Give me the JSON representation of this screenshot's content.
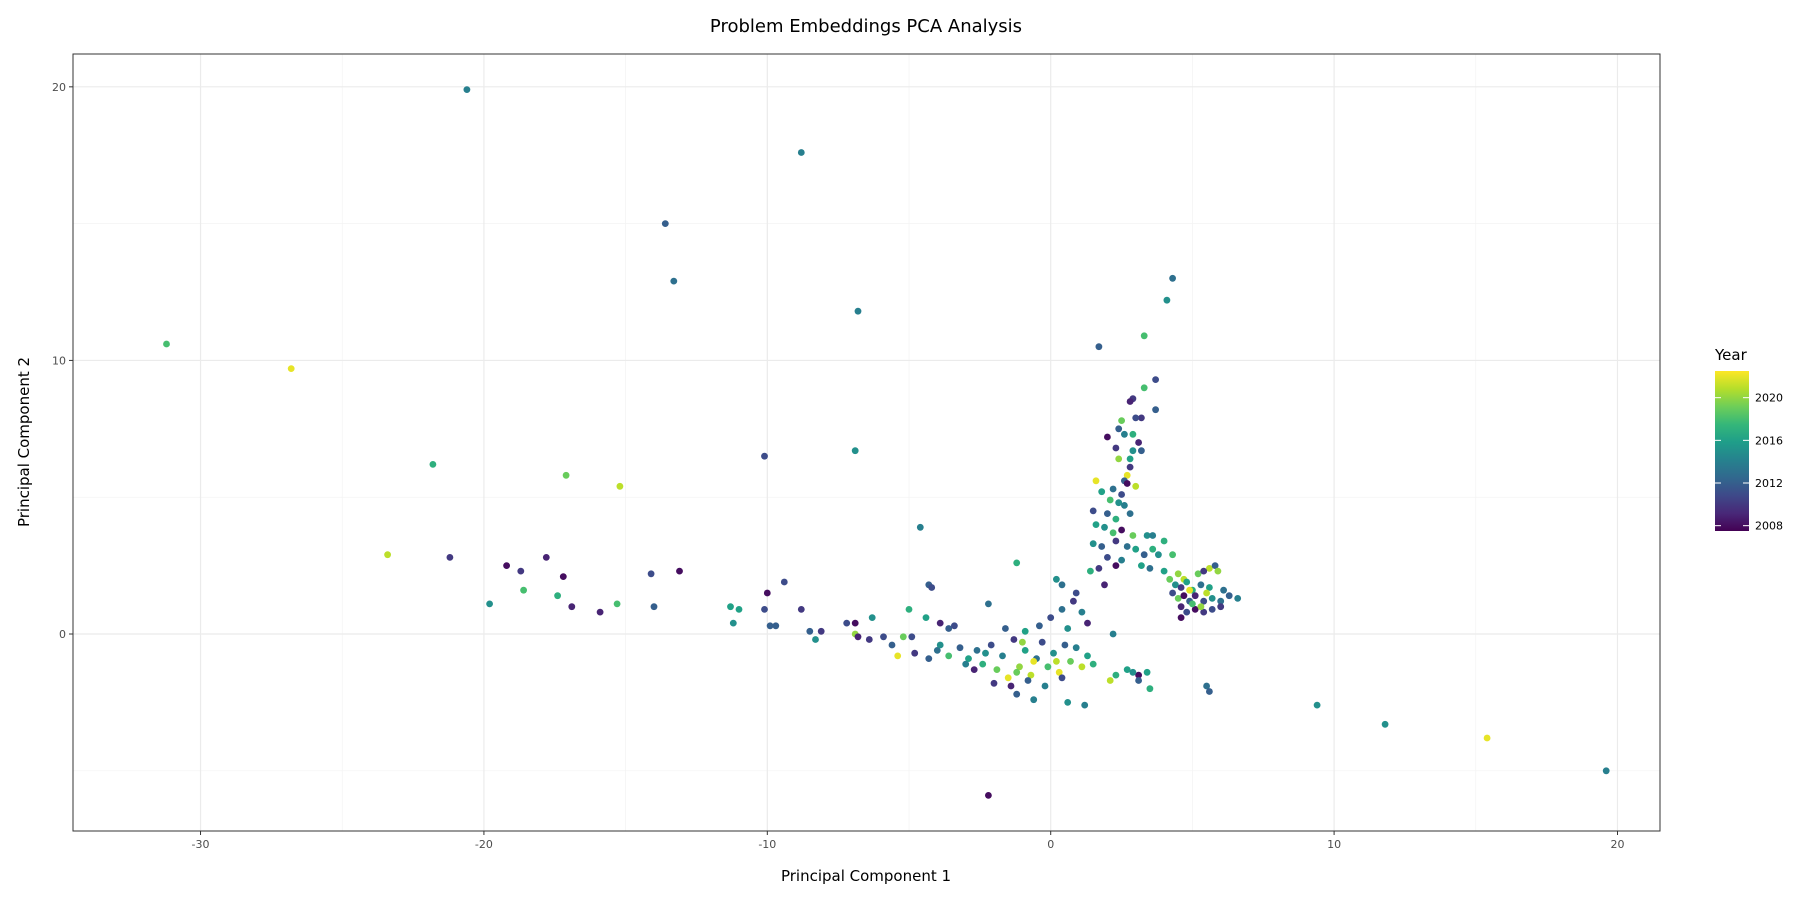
{
  "chart_data": {
    "type": "scatter",
    "title": "Problem Embeddings PCA Analysis",
    "xlabel": "Principal Component 1",
    "ylabel": "Principal Component 2",
    "xlim": [
      -34.5,
      21.5
    ],
    "ylim": [
      -7.2,
      21.2
    ],
    "x_ticks": [
      -30,
      -20,
      -10,
      0,
      10,
      20
    ],
    "x_tick_labels": [
      "-30",
      "-20",
      "-10",
      "0",
      "10",
      "20"
    ],
    "y_ticks": [
      0,
      10,
      20
    ],
    "y_tick_labels": [
      "0",
      "10",
      "20"
    ],
    "grid": true,
    "legend": {
      "title": "Year",
      "placement": "right",
      "color_range": [
        2007.5,
        2022.5
      ],
      "ticks": [
        2020,
        2016,
        2012,
        2008
      ],
      "tick_labels": [
        "2020",
        "2016",
        "2012",
        "2008"
      ]
    },
    "colormap": "viridis",
    "colormap_stops": [
      "#440154",
      "#482878",
      "#3e4989",
      "#31688e",
      "#26828e",
      "#1f9e89",
      "#35b779",
      "#6ece58",
      "#b5de2b",
      "#fde725"
    ],
    "points": [
      [
        -20.6,
        19.9,
        2014
      ],
      [
        -8.8,
        17.6,
        2014
      ],
      [
        -13.6,
        15.0,
        2012
      ],
      [
        -13.3,
        12.9,
        2013
      ],
      [
        -6.8,
        11.8,
        2014
      ],
      [
        -31.2,
        10.6,
        2018
      ],
      [
        -26.8,
        9.7,
        2022
      ],
      [
        -21.8,
        6.2,
        2017
      ],
      [
        -17.1,
        5.8,
        2019
      ],
      [
        -15.2,
        5.4,
        2021
      ],
      [
        -10.1,
        6.5,
        2011
      ],
      [
        -6.9,
        6.7,
        2015
      ],
      [
        -23.4,
        2.9,
        2021
      ],
      [
        -21.2,
        2.8,
        2010
      ],
      [
        -19.2,
        2.5,
        2008
      ],
      [
        -18.7,
        2.3,
        2010
      ],
      [
        -17.8,
        2.8,
        2009
      ],
      [
        -17.2,
        2.1,
        2008
      ],
      [
        -18.6,
        1.6,
        2018
      ],
      [
        -17.4,
        1.4,
        2017
      ],
      [
        -16.9,
        1.0,
        2009
      ],
      [
        -19.8,
        1.1,
        2015
      ],
      [
        -15.3,
        1.1,
        2018
      ],
      [
        -15.9,
        0.8,
        2009
      ],
      [
        -14.1,
        2.2,
        2011
      ],
      [
        -13.1,
        2.3,
        2008
      ],
      [
        -14.0,
        1.0,
        2012
      ],
      [
        -11.3,
        1.0,
        2016
      ],
      [
        -11.0,
        0.9,
        2016
      ],
      [
        -11.2,
        0.4,
        2015
      ],
      [
        -10.0,
        1.5,
        2008
      ],
      [
        -10.1,
        0.9,
        2011
      ],
      [
        -9.9,
        0.3,
        2012
      ],
      [
        -9.7,
        0.3,
        2012
      ],
      [
        -9.4,
        1.9,
        2011
      ],
      [
        -8.8,
        0.9,
        2010
      ],
      [
        -8.5,
        0.1,
        2012
      ],
      [
        -8.1,
        0.1,
        2010
      ],
      [
        -8.3,
        -0.2,
        2015
      ],
      [
        -7.2,
        0.4,
        2011
      ],
      [
        -6.9,
        0.4,
        2008
      ],
      [
        -6.9,
        0.0,
        2020
      ],
      [
        -6.8,
        -0.1,
        2009
      ],
      [
        -6.4,
        -0.2,
        2010
      ],
      [
        -6.3,
        0.6,
        2015
      ],
      [
        -5.9,
        -0.1,
        2011
      ],
      [
        -5.6,
        -0.4,
        2012
      ],
      [
        -5.4,
        -0.8,
        2022
      ],
      [
        -5.2,
        -0.1,
        2019
      ],
      [
        -5.0,
        0.9,
        2017
      ],
      [
        -4.9,
        -0.1,
        2011
      ],
      [
        -4.8,
        -0.7,
        2010
      ],
      [
        -4.6,
        3.9,
        2014
      ],
      [
        -4.4,
        0.6,
        2016
      ],
      [
        -4.3,
        1.8,
        2012
      ],
      [
        -4.2,
        1.7,
        2011
      ],
      [
        -4.0,
        -0.6,
        2013
      ],
      [
        -3.9,
        0.4,
        2009
      ],
      [
        -3.6,
        0.2,
        2012
      ],
      [
        -3.4,
        0.3,
        2011
      ],
      [
        -2.2,
        1.1,
        2013
      ],
      [
        -1.2,
        2.6,
        2017
      ],
      [
        -2.2,
        -5.9,
        2008
      ],
      [
        -1.2,
        -2.2,
        2012
      ],
      [
        -0.6,
        -2.4,
        2014
      ],
      [
        0.6,
        -2.5,
        2015
      ],
      [
        1.2,
        -2.6,
        2014
      ],
      [
        0.9,
        1.5,
        2011
      ],
      [
        0.2,
        2.0,
        2015
      ],
      [
        0.4,
        1.8,
        2013
      ],
      [
        2.2,
        0.0,
        2014
      ],
      [
        4.3,
        13.0,
        2013
      ],
      [
        4.1,
        12.2,
        2015
      ],
      [
        3.3,
        10.9,
        2018
      ],
      [
        1.7,
        10.5,
        2012
      ],
      [
        3.7,
        9.3,
        2011
      ],
      [
        3.3,
        9.0,
        2018
      ],
      [
        2.9,
        8.6,
        2010
      ],
      [
        2.8,
        8.5,
        2009
      ],
      [
        3.7,
        8.2,
        2012
      ],
      [
        3.2,
        7.9,
        2010
      ],
      [
        3.0,
        7.9,
        2011
      ],
      [
        2.5,
        7.8,
        2019
      ],
      [
        2.0,
        7.2,
        2008
      ],
      [
        2.4,
        7.5,
        2012
      ],
      [
        2.6,
        7.3,
        2014
      ],
      [
        2.9,
        7.3,
        2017
      ],
      [
        3.1,
        7.0,
        2009
      ],
      [
        2.3,
        6.8,
        2010
      ],
      [
        2.9,
        6.7,
        2015
      ],
      [
        3.2,
        6.7,
        2012
      ],
      [
        2.4,
        6.4,
        2020
      ],
      [
        2.8,
        6.4,
        2016
      ],
      [
        2.8,
        6.1,
        2010
      ],
      [
        2.7,
        5.8,
        2022
      ],
      [
        2.6,
        5.6,
        2012
      ],
      [
        2.7,
        5.5,
        2008
      ],
      [
        3.0,
        5.4,
        2021
      ],
      [
        1.6,
        5.6,
        2022
      ],
      [
        2.2,
        5.3,
        2013
      ],
      [
        2.5,
        5.1,
        2011
      ],
      [
        1.8,
        5.2,
        2016
      ],
      [
        2.1,
        4.9,
        2018
      ],
      [
        2.4,
        4.8,
        2015
      ],
      [
        2.6,
        4.7,
        2014
      ],
      [
        1.5,
        4.5,
        2011
      ],
      [
        2.0,
        4.4,
        2012
      ],
      [
        2.3,
        4.2,
        2017
      ],
      [
        2.8,
        4.4,
        2013
      ],
      [
        1.6,
        4.0,
        2016
      ],
      [
        1.9,
        3.9,
        2015
      ],
      [
        2.2,
        3.7,
        2018
      ],
      [
        2.5,
        3.8,
        2008
      ],
      [
        2.9,
        3.6,
        2019
      ],
      [
        3.4,
        3.6,
        2015
      ],
      [
        3.6,
        3.6,
        2014
      ],
      [
        4.0,
        3.4,
        2017
      ],
      [
        1.5,
        3.3,
        2015
      ],
      [
        1.8,
        3.2,
        2012
      ],
      [
        2.3,
        3.4,
        2010
      ],
      [
        2.7,
        3.2,
        2013
      ],
      [
        3.0,
        3.1,
        2016
      ],
      [
        3.3,
        2.9,
        2012
      ],
      [
        3.6,
        3.1,
        2017
      ],
      [
        3.8,
        2.9,
        2015
      ],
      [
        4.3,
        2.9,
        2018
      ],
      [
        2.0,
        2.8,
        2011
      ],
      [
        2.5,
        2.7,
        2014
      ],
      [
        3.2,
        2.5,
        2016
      ],
      [
        3.5,
        2.4,
        2013
      ],
      [
        4.0,
        2.3,
        2016
      ],
      [
        1.7,
        2.4,
        2010
      ],
      [
        2.3,
        2.5,
        2008
      ],
      [
        1.4,
        2.3,
        2017
      ],
      [
        1.9,
        1.8,
        2009
      ],
      [
        4.2,
        2.0,
        2019
      ],
      [
        4.5,
        2.2,
        2020
      ],
      [
        4.7,
        2.0,
        2021
      ],
      [
        5.2,
        2.2,
        2019
      ],
      [
        5.6,
        2.4,
        2021
      ],
      [
        5.8,
        2.5,
        2012
      ],
      [
        5.9,
        2.3,
        2020
      ],
      [
        5.4,
        2.3,
        2010
      ],
      [
        4.4,
        1.8,
        2015
      ],
      [
        4.6,
        1.7,
        2010
      ],
      [
        4.8,
        1.9,
        2016
      ],
      [
        5.0,
        1.6,
        2017
      ],
      [
        5.3,
        1.8,
        2013
      ],
      [
        5.6,
        1.7,
        2016
      ],
      [
        6.1,
        1.6,
        2013
      ],
      [
        6.3,
        1.4,
        2012
      ],
      [
        6.6,
        1.3,
        2014
      ],
      [
        4.3,
        1.5,
        2011
      ],
      [
        4.5,
        1.3,
        2019
      ],
      [
        4.7,
        1.4,
        2008
      ],
      [
        4.9,
        1.2,
        2012
      ],
      [
        5.1,
        1.4,
        2009
      ],
      [
        5.4,
        1.2,
        2011
      ],
      [
        5.7,
        1.3,
        2015
      ],
      [
        6.0,
        1.2,
        2013
      ],
      [
        4.6,
        1.0,
        2009
      ],
      [
        4.8,
        0.8,
        2011
      ],
      [
        5.1,
        0.9,
        2008
      ],
      [
        5.4,
        0.8,
        2010
      ],
      [
        5.7,
        0.9,
        2011
      ],
      [
        6.0,
        1.0,
        2010
      ],
      [
        4.6,
        0.6,
        2008
      ],
      [
        5.0,
        1.1,
        2018
      ],
      [
        5.3,
        1.0,
        2020
      ],
      [
        4.9,
        1.6,
        2022
      ],
      [
        5.5,
        1.5,
        2021
      ],
      [
        3.4,
        -1.4,
        2016
      ],
      [
        3.5,
        -2.0,
        2017
      ],
      [
        3.1,
        -1.5,
        2008
      ],
      [
        3.1,
        -1.7,
        2012
      ],
      [
        2.3,
        -1.5,
        2017
      ],
      [
        2.1,
        -1.7,
        2021
      ],
      [
        2.7,
        -1.3,
        2016
      ],
      [
        2.9,
        -1.4,
        2015
      ],
      [
        5.5,
        -1.9,
        2013
      ],
      [
        5.6,
        -2.1,
        2012
      ],
      [
        9.4,
        -2.6,
        2015
      ],
      [
        11.8,
        -3.3,
        2015
      ],
      [
        15.4,
        -3.8,
        2022
      ],
      [
        19.6,
        -5.0,
        2014
      ],
      [
        -3.2,
        -0.5,
        2012
      ],
      [
        -2.9,
        -0.9,
        2016
      ],
      [
        -2.6,
        -0.6,
        2013
      ],
      [
        -2.4,
        -1.1,
        2017
      ],
      [
        -2.1,
        -0.4,
        2011
      ],
      [
        -1.9,
        -1.3,
        2019
      ],
      [
        -1.7,
        -0.8,
        2014
      ],
      [
        -1.5,
        -1.6,
        2022
      ],
      [
        -1.3,
        -0.2,
        2010
      ],
      [
        -1.1,
        -1.2,
        2020
      ],
      [
        -0.9,
        -0.6,
        2016
      ],
      [
        -0.7,
        -1.5,
        2021
      ],
      [
        -0.5,
        -0.9,
        2013
      ],
      [
        -0.3,
        -0.3,
        2011
      ],
      [
        -0.1,
        -1.2,
        2018
      ],
      [
        0.1,
        -0.7,
        2015
      ],
      [
        0.3,
        -1.4,
        2022
      ],
      [
        0.5,
        -0.4,
        2012
      ],
      [
        0.7,
        -1.0,
        2019
      ],
      [
        0.9,
        -0.5,
        2014
      ],
      [
        1.1,
        -1.2,
        2021
      ],
      [
        1.3,
        -0.8,
        2016
      ],
      [
        1.5,
        -1.1,
        2017
      ],
      [
        -2.0,
        -1.8,
        2010
      ],
      [
        -1.4,
        -1.9,
        2009
      ],
      [
        -0.8,
        -1.7,
        2012
      ],
      [
        -0.2,
        -1.9,
        2014
      ],
      [
        0.4,
        -1.6,
        2011
      ],
      [
        -3.6,
        -0.8,
        2018
      ],
      [
        -3.9,
        -0.4,
        2015
      ],
      [
        -4.3,
        -0.9,
        2012
      ],
      [
        -2.7,
        -1.3,
        2009
      ],
      [
        -0.4,
        0.3,
        2012
      ],
      [
        0.0,
        0.6,
        2011
      ],
      [
        0.4,
        0.9,
        2013
      ],
      [
        0.8,
        1.2,
        2010
      ],
      [
        1.1,
        0.8,
        2014
      ],
      [
        1.3,
        0.4,
        2009
      ],
      [
        0.6,
        0.2,
        2015
      ],
      [
        -0.9,
        0.1,
        2016
      ],
      [
        -1.6,
        0.2,
        2012
      ],
      [
        -1.0,
        -0.3,
        2020
      ],
      [
        -0.6,
        -1.0,
        2022
      ],
      [
        0.2,
        -1.0,
        2021
      ],
      [
        -1.2,
        -1.4,
        2019
      ],
      [
        -2.3,
        -0.7,
        2015
      ],
      [
        -3.0,
        -1.1,
        2014
      ]
    ]
  }
}
